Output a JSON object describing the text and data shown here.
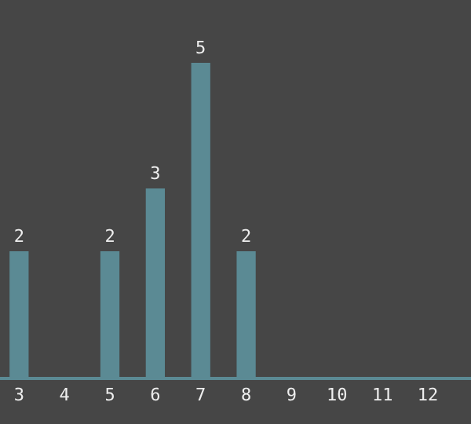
{
  "chart_data": {
    "type": "bar",
    "categories": [
      "3",
      "4",
      "5",
      "6",
      "7",
      "8",
      "9",
      "10",
      "11",
      "12"
    ],
    "values": [
      2,
      null,
      2,
      3,
      5,
      2,
      null,
      null,
      null,
      null
    ],
    "color": "#5b8a94",
    "data_labels": true
  }
}
